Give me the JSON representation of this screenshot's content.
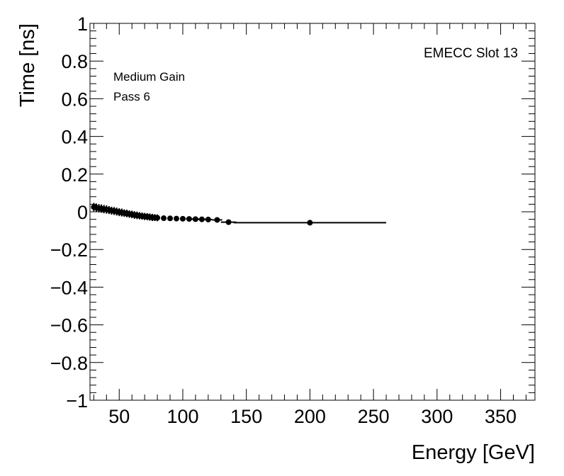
{
  "chart_data": {
    "type": "scatter",
    "xlabel": "Energy [GeV]",
    "ylabel": "Time [ns]",
    "xlim": [
      27,
      377
    ],
    "ylim": [
      -1,
      1
    ],
    "x_ticks": [
      50,
      100,
      150,
      200,
      250,
      300,
      350
    ],
    "x_tick_labels": [
      "50",
      "100",
      "150",
      "200",
      "250",
      "300",
      "350"
    ],
    "y_ticks": [
      -1,
      -0.8,
      -0.6,
      -0.4,
      -0.2,
      0,
      0.2,
      0.4,
      0.6,
      0.8,
      1
    ],
    "y_tick_labels": [
      "−1",
      "−0.8",
      "−0.6",
      "−0.4",
      "−0.2",
      "0",
      "0.2",
      "0.4",
      "0.6",
      "0.8",
      "1"
    ],
    "grid": false,
    "annotations": {
      "top_right": "EMECC Slot 13",
      "gain": "Medium Gain",
      "pass": "Pass 6"
    },
    "points": [
      {
        "x": 30,
        "y": 0.025,
        "xerr": 1.5,
        "yerr": 0.022
      },
      {
        "x": 32,
        "y": 0.022,
        "xerr": 1.5,
        "yerr": 0.022
      },
      {
        "x": 34,
        "y": 0.019,
        "xerr": 1.5,
        "yerr": 0.022
      },
      {
        "x": 36,
        "y": 0.017,
        "xerr": 1.5,
        "yerr": 0.022
      },
      {
        "x": 38,
        "y": 0.014,
        "xerr": 1.5,
        "yerr": 0.022
      },
      {
        "x": 40,
        "y": 0.012,
        "xerr": 1.5,
        "yerr": 0.022
      },
      {
        "x": 42,
        "y": 0.009,
        "xerr": 1.5,
        "yerr": 0.021
      },
      {
        "x": 44,
        "y": 0.006,
        "xerr": 1.5,
        "yerr": 0.021
      },
      {
        "x": 46,
        "y": 0.004,
        "xerr": 1.5,
        "yerr": 0.021
      },
      {
        "x": 48,
        "y": 0.001,
        "xerr": 1.5,
        "yerr": 0.021
      },
      {
        "x": 50,
        "y": -0.002,
        "xerr": 1.5,
        "yerr": 0.021
      },
      {
        "x": 52,
        "y": -0.004,
        "xerr": 1.5,
        "yerr": 0.021
      },
      {
        "x": 54,
        "y": -0.007,
        "xerr": 1.5,
        "yerr": 0.02
      },
      {
        "x": 56,
        "y": -0.009,
        "xerr": 1.5,
        "yerr": 0.02
      },
      {
        "x": 58,
        "y": -0.012,
        "xerr": 1.5,
        "yerr": 0.02
      },
      {
        "x": 60,
        "y": -0.014,
        "xerr": 1.5,
        "yerr": 0.02
      },
      {
        "x": 62,
        "y": -0.017,
        "xerr": 1.5,
        "yerr": 0.02
      },
      {
        "x": 64,
        "y": -0.019,
        "xerr": 1.5,
        "yerr": 0.02
      },
      {
        "x": 66,
        "y": -0.021,
        "xerr": 1.5,
        "yerr": 0.019
      },
      {
        "x": 68,
        "y": -0.023,
        "xerr": 1.5,
        "yerr": 0.019
      },
      {
        "x": 70,
        "y": -0.025,
        "xerr": 1.5,
        "yerr": 0.019
      },
      {
        "x": 72,
        "y": -0.026,
        "xerr": 1.5,
        "yerr": 0.019
      },
      {
        "x": 74,
        "y": -0.028,
        "xerr": 1.5,
        "yerr": 0.019
      },
      {
        "x": 76,
        "y": -0.03,
        "xerr": 1.5,
        "yerr": 0.019
      },
      {
        "x": 78,
        "y": -0.031,
        "xerr": 1.5,
        "yerr": 0.018
      },
      {
        "x": 80,
        "y": -0.032,
        "xerr": 1.5,
        "yerr": 0.018
      },
      {
        "x": 85,
        "y": -0.034,
        "xerr": 2,
        "yerr": 0.012
      },
      {
        "x": 90,
        "y": -0.035,
        "xerr": 2,
        "yerr": 0.011
      },
      {
        "x": 95,
        "y": -0.036,
        "xerr": 2,
        "yerr": 0.01
      },
      {
        "x": 100,
        "y": -0.037,
        "xerr": 2,
        "yerr": 0.01
      },
      {
        "x": 105,
        "y": -0.038,
        "xerr": 2.5,
        "yerr": 0.009
      },
      {
        "x": 110,
        "y": -0.039,
        "xerr": 3,
        "yerr": 0.008
      },
      {
        "x": 115,
        "y": -0.04,
        "xerr": 3,
        "yerr": 0.007
      },
      {
        "x": 120,
        "y": -0.041,
        "xerr": 3,
        "yerr": 0.006
      },
      {
        "x": 127,
        "y": -0.043,
        "xerr": 4,
        "yerr": 0.006
      },
      {
        "x": 136,
        "y": -0.055,
        "xerr": 6,
        "yerr": 0.005
      },
      {
        "x": 200,
        "y": -0.058,
        "xerr": 60,
        "yerr": 0.004
      }
    ]
  }
}
